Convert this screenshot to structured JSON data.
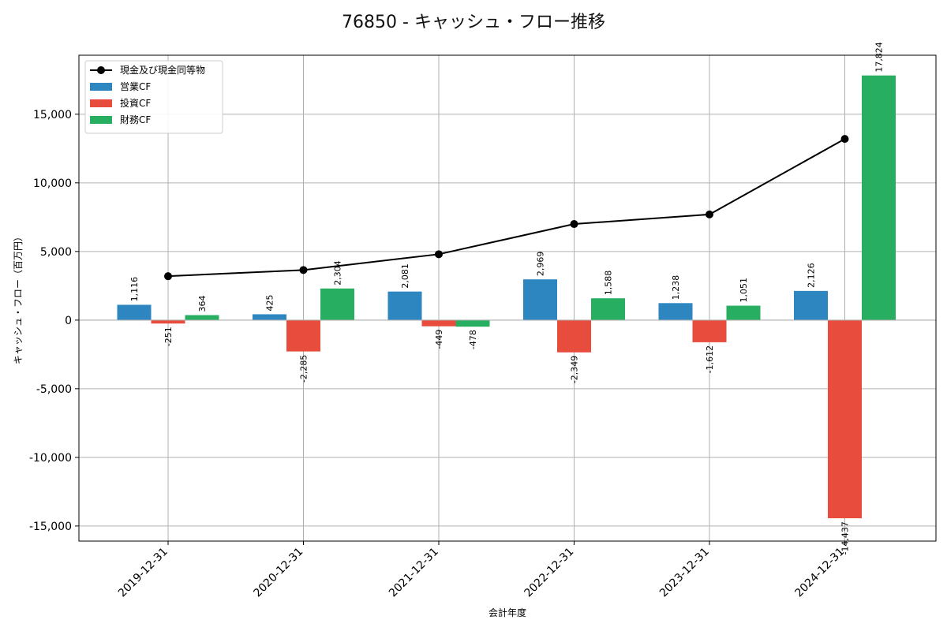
{
  "chart_data": {
    "type": "bar",
    "title": "76850 - キャッシュ・フロー推移",
    "xlabel": "会計年度",
    "ylabel": "キャッシュ・フロー（百万円）",
    "categories": [
      "2019-12-31",
      "2020-12-31",
      "2021-12-31",
      "2022-12-31",
      "2023-12-31",
      "2024-12-31"
    ],
    "ylim": [
      -16100,
      19300
    ],
    "yticks": [
      -15000,
      -10000,
      -5000,
      0,
      5000,
      10000,
      15000
    ],
    "ytick_labels": [
      "-15,000",
      "-10,000",
      "-5,000",
      "0",
      "5,000",
      "10,000",
      "15,000"
    ],
    "grid": true,
    "legend_position": "top-left",
    "series": [
      {
        "name": "営業CF",
        "kind": "bar",
        "color": "#2e86c1",
        "values": [
          1116,
          425,
          2081,
          2969,
          1238,
          2126
        ],
        "labels": [
          "1,116",
          "425",
          "2,081",
          "2,969",
          "1,238",
          "2,126"
        ]
      },
      {
        "name": "投資CF",
        "kind": "bar",
        "color": "#e74c3c",
        "values": [
          -251,
          -2285,
          -449,
          -2349,
          -1612,
          -14437
        ],
        "labels": [
          "-251",
          "-2,285",
          "-449",
          "-2,349",
          "-1,612",
          "-14,437"
        ]
      },
      {
        "name": "財務CF",
        "kind": "bar",
        "color": "#27ae60",
        "values": [
          364,
          2304,
          -478,
          1588,
          1051,
          17824
        ],
        "labels": [
          "364",
          "2,304",
          "-478",
          "1,588",
          "1,051",
          "17,824"
        ]
      },
      {
        "name": "現金及び現金同等物",
        "kind": "line",
        "color": "#000000",
        "values": [
          3200,
          3650,
          4800,
          7000,
          7700,
          13200
        ]
      }
    ]
  }
}
